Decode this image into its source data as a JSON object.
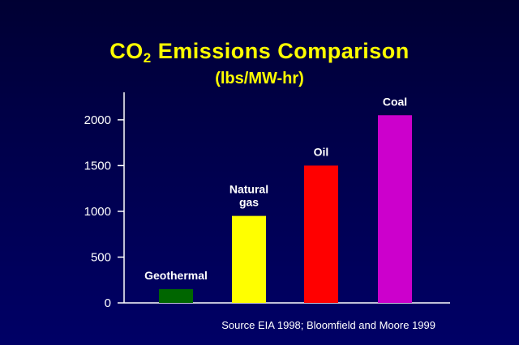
{
  "chart_data": {
    "type": "bar",
    "title_main": "CO",
    "title_sub": "2",
    "title_rest": "Emissions Comparison",
    "subtitle": "(lbs/MW-hr)",
    "categories": [
      {
        "lines": [
          "Geothermal"
        ],
        "color": "#006600"
      },
      {
        "lines": [
          "Natural",
          "gas"
        ],
        "color": "#ffff00"
      },
      {
        "lines": [
          "Oil"
        ],
        "color": "#ff0000"
      },
      {
        "lines": [
          "Coal"
        ],
        "color": "#cc00cc"
      }
    ],
    "values": [
      150,
      950,
      1500,
      2050
    ],
    "ylim": [
      0,
      2300
    ],
    "yticks": [
      0,
      500,
      1000,
      1500,
      2000
    ],
    "source": "Source EIA 1998; Bloomfield and Moore 1999"
  }
}
